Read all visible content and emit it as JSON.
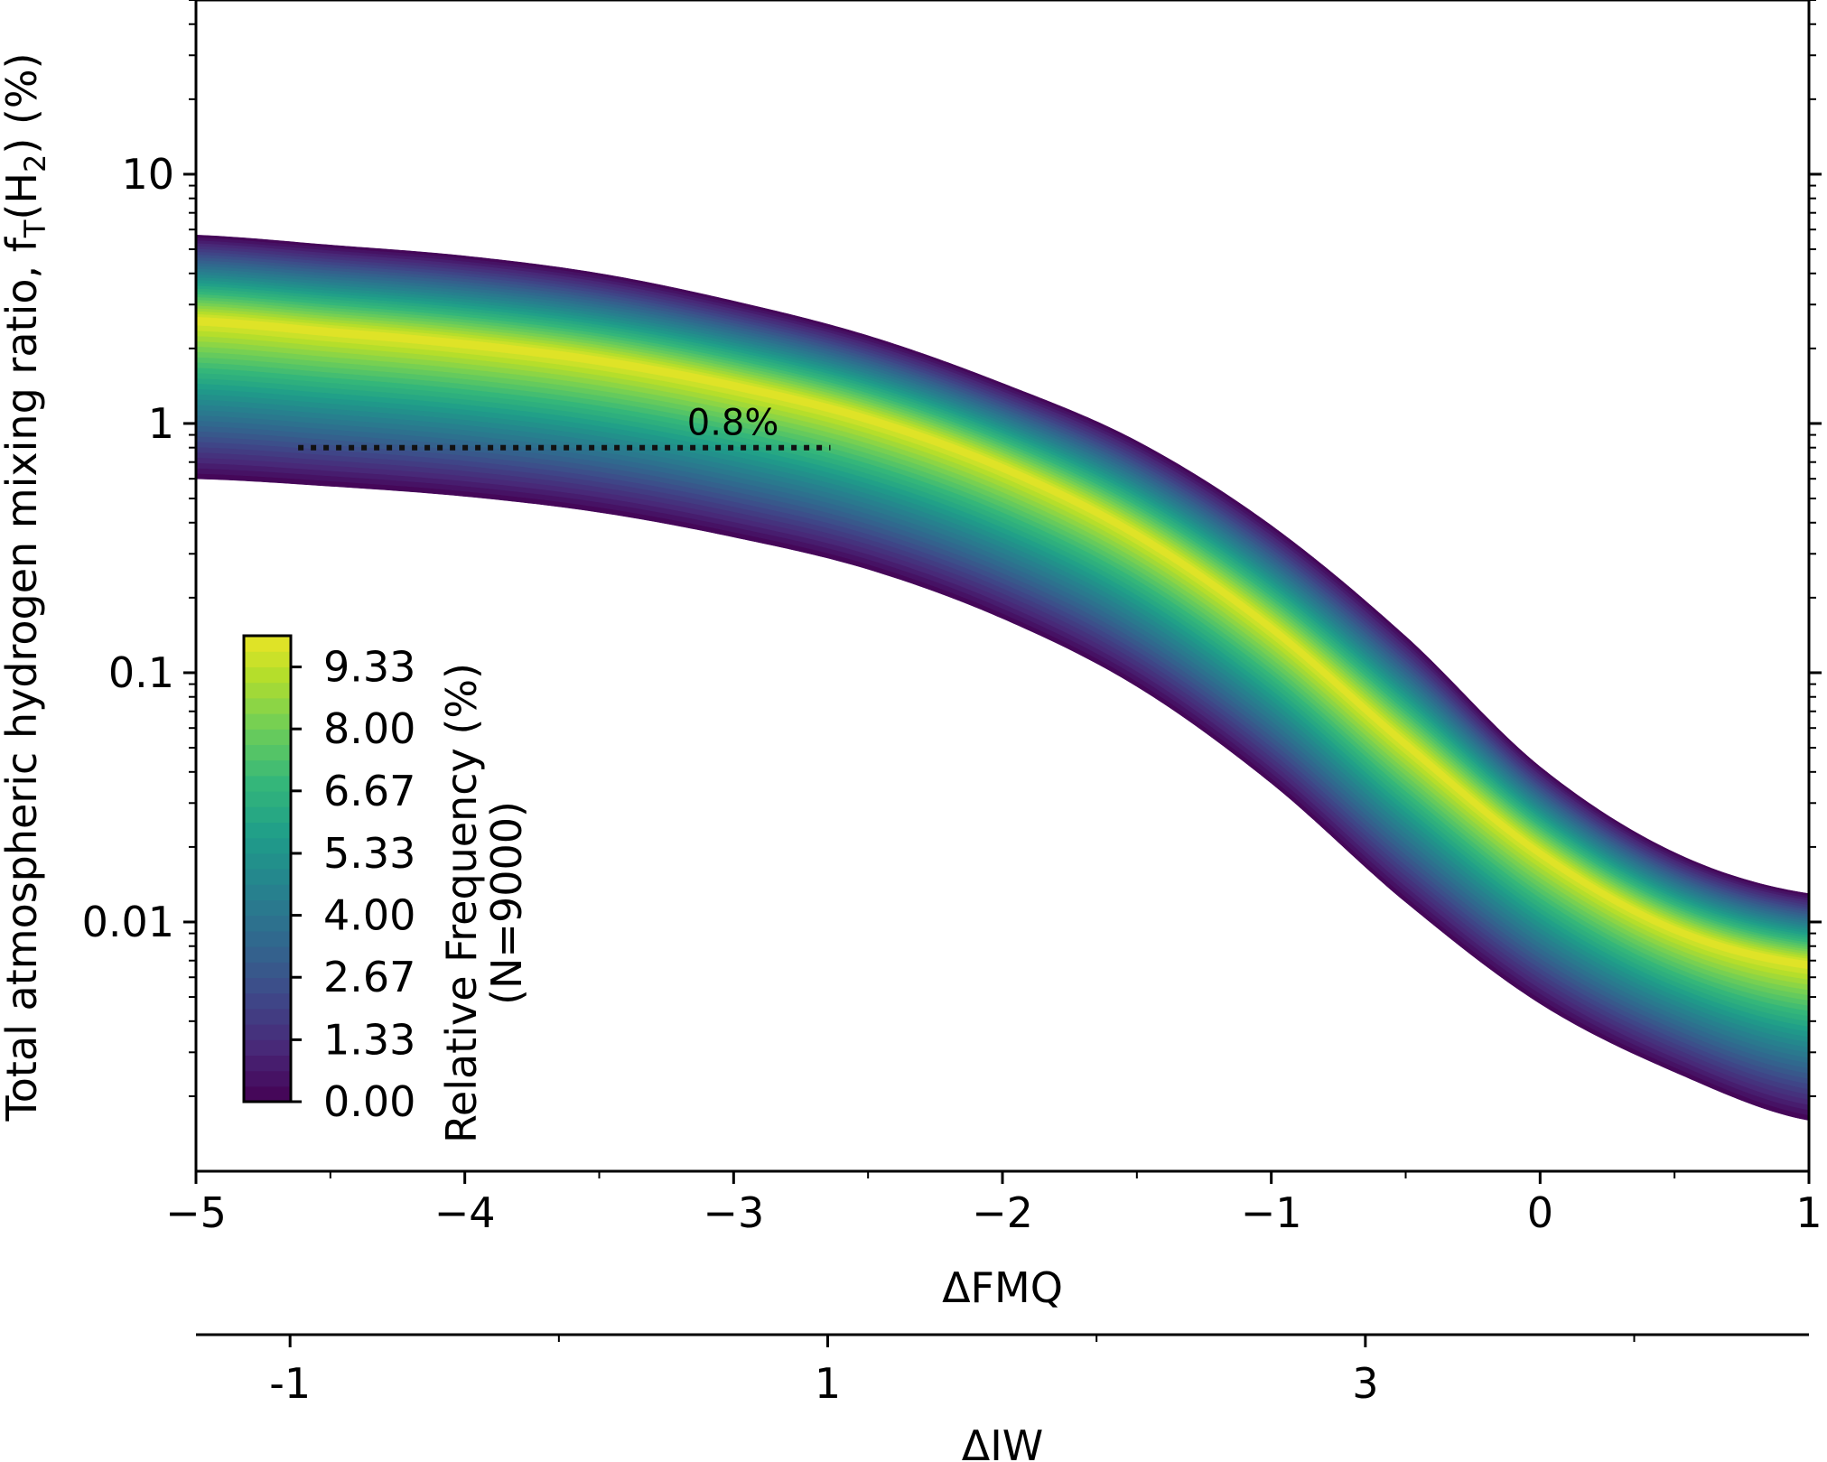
{
  "chart_data": {
    "type": "heatmap",
    "title": "",
    "xlabel": "ΔFMQ",
    "x2label": "ΔIW",
    "ylabel_main": "Total atmospheric hydrogen mixing ratio, f",
    "ylabel_sub": "T",
    "ylabel_mid": "(H",
    "ylabel_sub2": "2",
    "ylabel_end": ") (%)",
    "xlim": [
      -5,
      1
    ],
    "ylim": [
      0.001,
      50
    ],
    "y_scale": "log",
    "x_ticks": [
      {
        "value": -5,
        "label": "−5"
      },
      {
        "value": -4,
        "label": "−4"
      },
      {
        "value": -3,
        "label": "−3"
      },
      {
        "value": -2,
        "label": "−2"
      },
      {
        "value": -1,
        "label": "−1"
      },
      {
        "value": 0,
        "label": "0"
      },
      {
        "value": 1,
        "label": "1"
      }
    ],
    "x_minor_ticks": [
      -4.5,
      -3.5,
      -2.5,
      -1.5,
      -0.5,
      0.5
    ],
    "x2_offset": 3.65,
    "x2_ticks": [
      {
        "value": -1,
        "label": "-1"
      },
      {
        "value": 1,
        "label": "1"
      },
      {
        "value": 3,
        "label": "3"
      }
    ],
    "x2_minor_ticks": [
      0,
      2,
      4
    ],
    "y_ticks": [
      {
        "value": 10,
        "label": "10"
      },
      {
        "value": 1,
        "label": "1"
      },
      {
        "value": 0.1,
        "label": "0.1"
      },
      {
        "value": 0.01,
        "label": "0.01"
      }
    ],
    "band": {
      "x": [
        -5,
        -4.5,
        -4,
        -3.5,
        -3,
        -2.5,
        -2,
        -1.5,
        -1,
        -0.5,
        0,
        0.5,
        1
      ],
      "upper": [
        5.7,
        5.2,
        4.7,
        4.0,
        3.1,
        2.25,
        1.45,
        0.85,
        0.39,
        0.14,
        0.042,
        0.019,
        0.013
      ],
      "ridge": [
        2.6,
        2.35,
        2.1,
        1.8,
        1.43,
        1.05,
        0.67,
        0.36,
        0.152,
        0.052,
        0.019,
        0.0094,
        0.0068
      ],
      "lower": [
        0.6,
        0.56,
        0.51,
        0.44,
        0.35,
        0.26,
        0.165,
        0.088,
        0.036,
        0.012,
        0.0047,
        0.0025,
        0.0016
      ]
    },
    "annotation": {
      "text": "0.8%",
      "y": 0.8,
      "x_start": -4.62,
      "x_end": -2.64
    },
    "colorbar": {
      "label": "Relative Frequency (%)",
      "label2": "(N=9000)",
      "min": 0,
      "max": 10,
      "ticks": [
        {
          "value": 0.0,
          "label": "0.00"
        },
        {
          "value": 1.33,
          "label": "1.33"
        },
        {
          "value": 2.67,
          "label": "2.67"
        },
        {
          "value": 4.0,
          "label": "4.00"
        },
        {
          "value": 5.33,
          "label": "5.33"
        },
        {
          "value": 6.67,
          "label": "6.67"
        },
        {
          "value": 8.0,
          "label": "8.00"
        },
        {
          "value": 9.33,
          "label": "9.33"
        }
      ],
      "levels": 30,
      "colors": [
        "#440154",
        "#482878",
        "#3e4989",
        "#31688e",
        "#26828e",
        "#1f9e89",
        "#35b779",
        "#6ece58",
        "#b5de2b",
        "#fde725"
      ]
    }
  }
}
